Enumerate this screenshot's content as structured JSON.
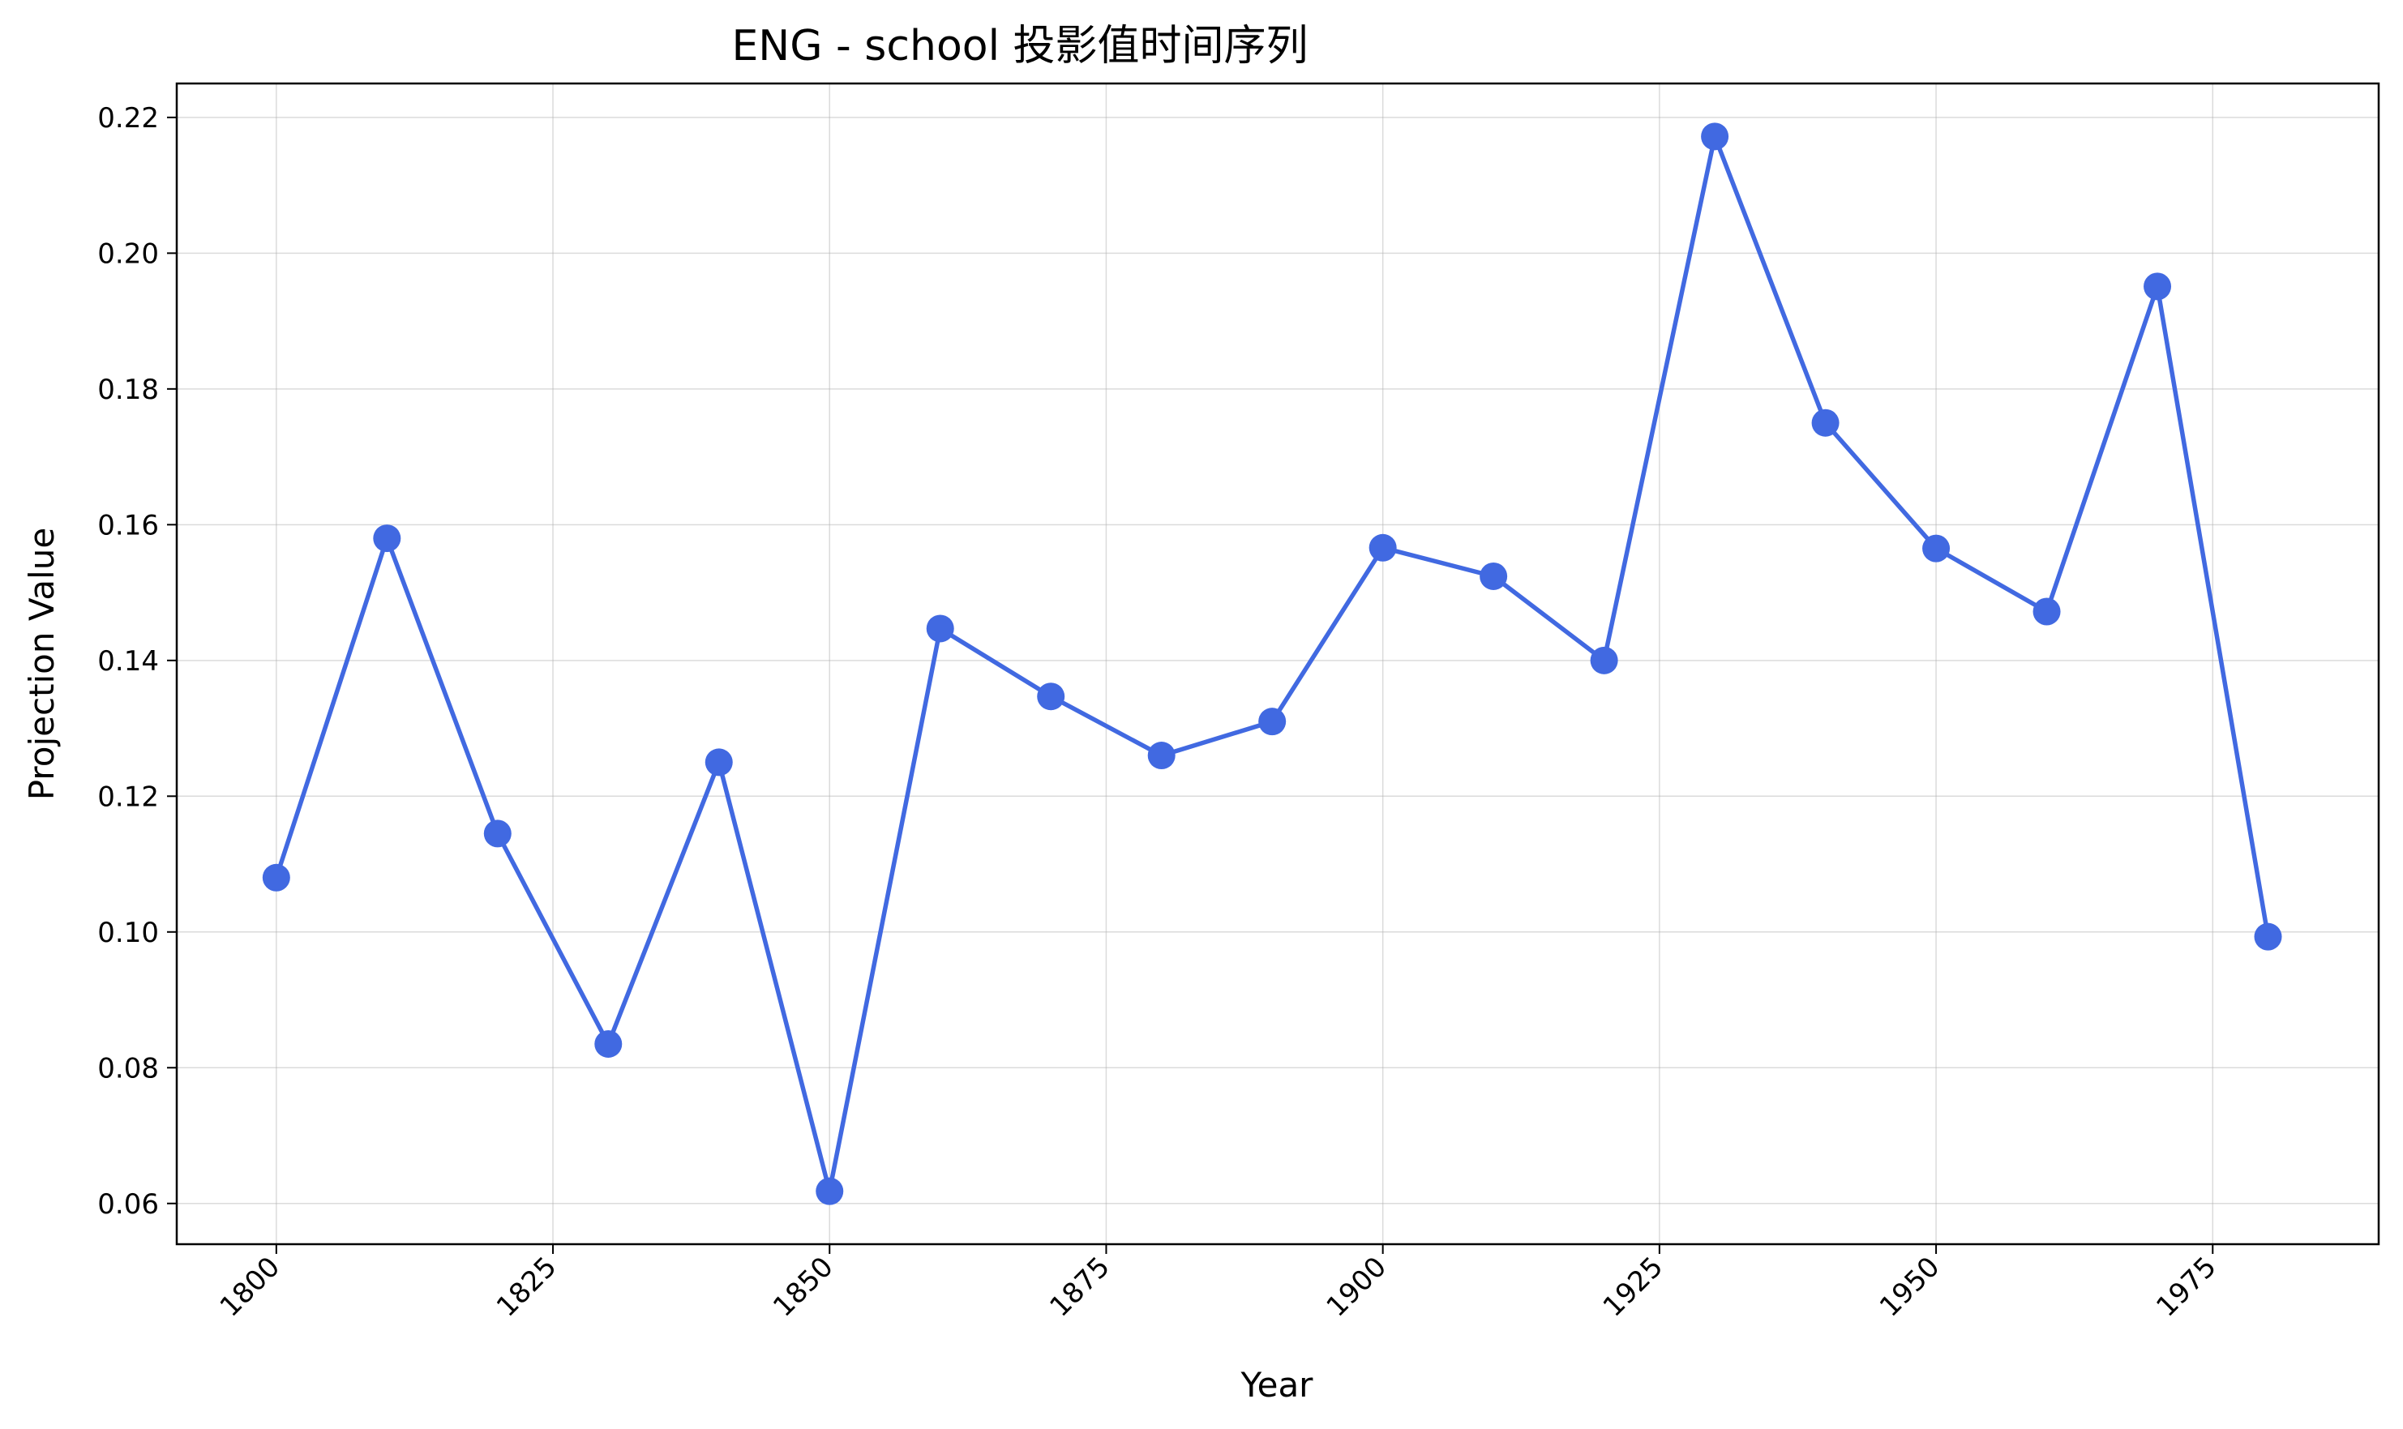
{
  "chart_data": {
    "type": "line",
    "title": "ENG - school 投影值时间序列",
    "xlabel": "Year",
    "ylabel": "Projection Value",
    "xlim": [
      1791,
      1990
    ],
    "ylim": [
      0.054,
      0.225
    ],
    "xticks": [
      1800,
      1825,
      1850,
      1875,
      1900,
      1925,
      1950,
      1975
    ],
    "xtick_labels": [
      "1800",
      "1825",
      "1850",
      "1875",
      "1900",
      "1925",
      "1950",
      "1975"
    ],
    "yticks": [
      0.06,
      0.08,
      0.1,
      0.12,
      0.14,
      0.16,
      0.18,
      0.2,
      0.22
    ],
    "ytick_labels": [
      "0.06",
      "0.08",
      "0.10",
      "0.12",
      "0.14",
      "0.16",
      "0.18",
      "0.20",
      "0.22"
    ],
    "grid": true,
    "series": [
      {
        "color": "#4169e1",
        "marker": "circle",
        "x": [
          1800,
          1810,
          1820,
          1830,
          1840,
          1850,
          1860,
          1870,
          1880,
          1890,
          1900,
          1910,
          1920,
          1930,
          1940,
          1950,
          1960,
          1970,
          1980
        ],
        "y": [
          0.108,
          0.158,
          0.1145,
          0.0835,
          0.125,
          0.0618,
          0.1447,
          0.1347,
          0.126,
          0.131,
          0.1566,
          0.1524,
          0.14,
          0.2172,
          0.175,
          0.1565,
          0.1472,
          0.1951,
          0.0993
        ]
      }
    ]
  }
}
